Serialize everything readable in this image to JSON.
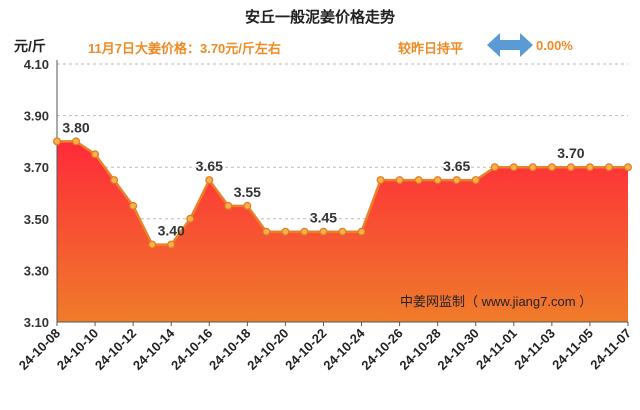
{
  "header": {
    "title": "安丘一般泥姜价格走势",
    "unit": "元/斤",
    "price_note": "11月7日大姜价格：3.70元/斤左右",
    "change_note": "较昨日持平",
    "change_pct": "0.00%"
  },
  "icons": {
    "change": "left-right-arrow-icon"
  },
  "colors": {
    "accent": "#f08a24",
    "arrow": "#5b9bd5",
    "line": "#e8812a",
    "area_top": "#ff2a3a",
    "area_bottom": "#ef7c2a"
  },
  "watermark": "中姜网监制（ www.jiang7.com ）",
  "chart_data": {
    "type": "area",
    "title": "安丘一般泥姜价格走势",
    "ylabel": "元/斤",
    "xlabel": "",
    "ylim": [
      3.1,
      4.1
    ],
    "yticks": [
      "3.10",
      "3.30",
      "3.50",
      "3.70",
      "3.90",
      "4.10"
    ],
    "grid": "horizontal-dashed",
    "x": [
      "24-10-08",
      "24-10-09",
      "24-10-10",
      "24-10-11",
      "24-10-12",
      "24-10-13",
      "24-10-14",
      "24-10-15",
      "24-10-16",
      "24-10-17",
      "24-10-18",
      "24-10-19",
      "24-10-20",
      "24-10-21",
      "24-10-22",
      "24-10-23",
      "24-10-24",
      "24-10-25",
      "24-10-26",
      "24-10-27",
      "24-10-28",
      "24-10-29",
      "24-10-30",
      "24-10-31",
      "24-11-01",
      "24-11-02",
      "24-11-03",
      "24-11-04",
      "24-11-05",
      "24-11-06",
      "24-11-07"
    ],
    "xticks": [
      "24-10-08",
      "24-10-10",
      "24-10-12",
      "24-10-14",
      "24-10-16",
      "24-10-18",
      "24-10-20",
      "24-10-22",
      "24-10-24",
      "24-10-26",
      "24-10-28",
      "24-10-30",
      "24-11-01",
      "24-11-03",
      "24-11-05",
      "24-11-07"
    ],
    "values": [
      3.8,
      3.8,
      3.75,
      3.65,
      3.55,
      3.4,
      3.4,
      3.5,
      3.65,
      3.55,
      3.55,
      3.45,
      3.45,
      3.45,
      3.45,
      3.45,
      3.45,
      3.65,
      3.65,
      3.65,
      3.65,
      3.65,
      3.65,
      3.7,
      3.7,
      3.7,
      3.7,
      3.7,
      3.7,
      3.7,
      3.7
    ],
    "data_labels": [
      {
        "index": 1,
        "text": "3.80"
      },
      {
        "index": 6,
        "text": "3.40"
      },
      {
        "index": 8,
        "text": "3.65"
      },
      {
        "index": 10,
        "text": "3.55"
      },
      {
        "index": 14,
        "text": "3.45"
      },
      {
        "index": 21,
        "text": "3.65"
      },
      {
        "index": 27,
        "text": "3.70"
      }
    ]
  }
}
